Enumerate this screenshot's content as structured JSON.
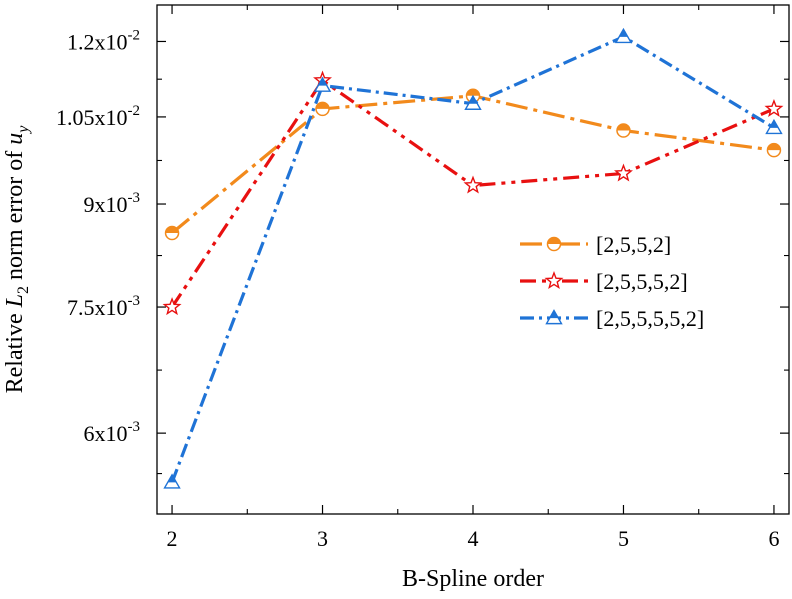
{
  "chart_data": {
    "type": "line",
    "title": "",
    "xlabel": "B-Spline order",
    "ylabel": {
      "prefix": "Relative ",
      "L": "L",
      "L_sub": "2",
      "middle": " norm error of ",
      "u": "u",
      "u_sub": "y"
    },
    "x": [
      2,
      3,
      4,
      5,
      6
    ],
    "xticks": [
      "2",
      "3",
      "4",
      "5",
      "6"
    ],
    "xlim": [
      1.9,
      6.1
    ],
    "yscale": "log",
    "ylim": [
      0.0052,
      0.0128
    ],
    "yticks": [
      {
        "value": 0.006,
        "base": "6x10",
        "exp": "-3"
      },
      {
        "value": 0.0075,
        "base": "7.5x10",
        "exp": "-3"
      },
      {
        "value": 0.009,
        "base": "9x10",
        "exp": "-3"
      },
      {
        "value": 0.0105,
        "base": "1.05x10",
        "exp": "-2"
      },
      {
        "value": 0.012,
        "base": "1.2x10",
        "exp": "-2"
      }
    ],
    "grid": false,
    "legend_position": "center-right",
    "series": [
      {
        "name": "[2,5,5,2]",
        "values": [
          0.00855,
          0.01065,
          0.0109,
          0.01025,
          0.0099
        ],
        "color": "#f28a1c",
        "dash": "22,6,4,6",
        "marker": "half-circle"
      },
      {
        "name": "[2,5,5,5,2]",
        "values": [
          0.0075,
          0.0112,
          0.0093,
          0.0095,
          0.01065
        ],
        "color": "#e81010",
        "dash": "16,6,4,6,4,6",
        "marker": "star"
      },
      {
        "name": "[2,5,5,5,5,2]",
        "values": [
          0.0055,
          0.0111,
          0.01075,
          0.0121,
          0.0103
        ],
        "color": "#1f73d6",
        "dash": "14,5,3,5",
        "marker": "half-triangle"
      }
    ]
  }
}
